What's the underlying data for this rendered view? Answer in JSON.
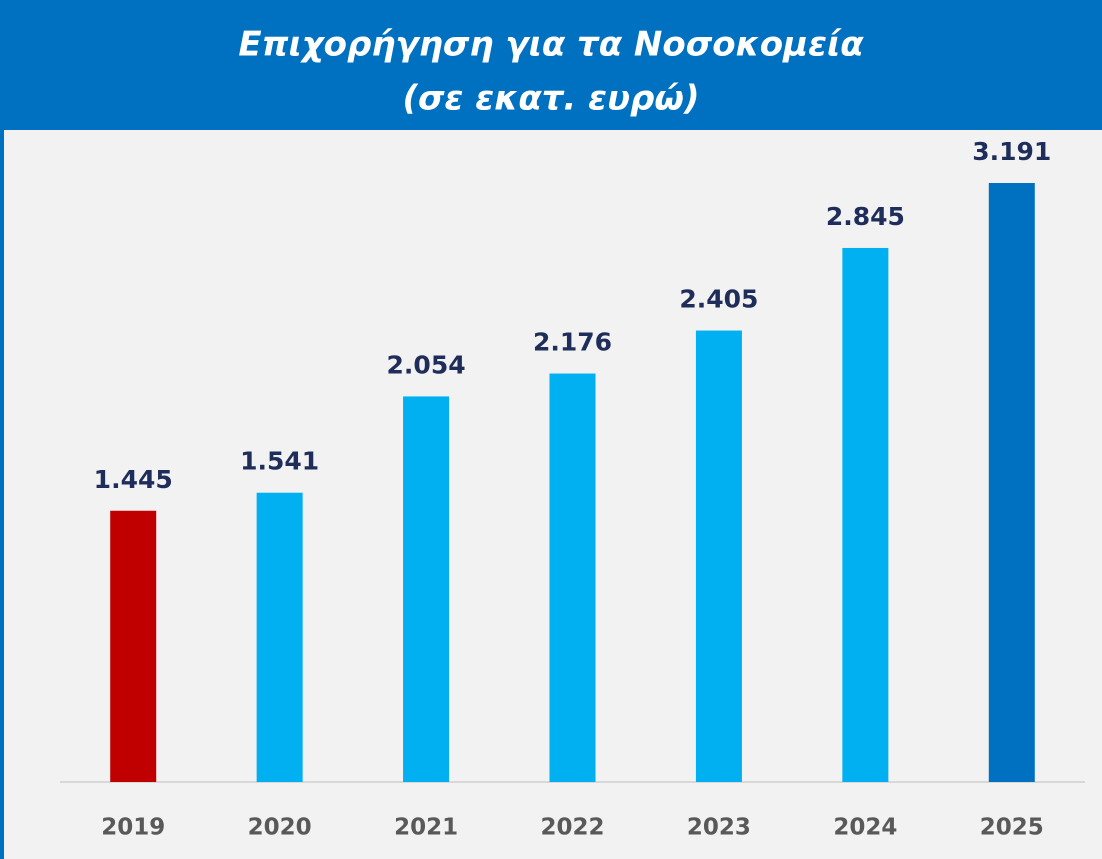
{
  "chart_data": {
    "type": "bar",
    "title": "Επιχορήγηση για τα Νοσοκομεία",
    "subtitle": "(σε εκατ. ευρώ)",
    "categories": [
      "2019",
      "2020",
      "2021",
      "2022",
      "2023",
      "2024",
      "2025"
    ],
    "values": [
      1445,
      1541,
      2054,
      2176,
      2405,
      2845,
      3191
    ],
    "value_labels": [
      "1.445",
      "1.541",
      "2.054",
      "2.176",
      "2.405",
      "2.845",
      "3.191"
    ],
    "colors": [
      "#c00000",
      "#00b0f0",
      "#00b0f0",
      "#00b0f0",
      "#00b0f0",
      "#00b0f0",
      "#0070c0"
    ]
  }
}
